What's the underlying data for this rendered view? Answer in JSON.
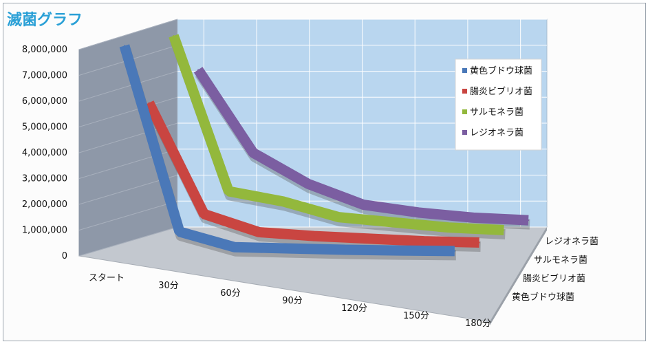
{
  "chart_data": {
    "type": "line",
    "title": "滅菌グラフ",
    "categories": [
      "スタート",
      "30分",
      "60分",
      "90分",
      "120分",
      "150分",
      "180分"
    ],
    "yticks": [
      "0",
      "1,000,000",
      "2,000,000",
      "3,000,000",
      "4,000,000",
      "5,000,000",
      "6,000,000",
      "7,000,000",
      "8,000,000"
    ],
    "ylim": [
      0,
      8000000
    ],
    "legend_position": "top-right",
    "series": [
      {
        "name": "黄色ブドウ球菌",
        "color": "#4a78b8",
        "values": [
          8000000,
          800000,
          200000,
          150000,
          100000,
          70000,
          50000
        ]
      },
      {
        "name": "腸炎ビブリオ菌",
        "color": "#c94541",
        "values": [
          5500000,
          1200000,
          500000,
          350000,
          250000,
          150000,
          100000
        ]
      },
      {
        "name": "サルモネラ菌",
        "color": "#93b83c",
        "values": [
          7800000,
          1800000,
          1400000,
          800000,
          600000,
          400000,
          300000
        ]
      },
      {
        "name": "レジオネラ菌",
        "color": "#7b5ea1",
        "values": [
          6200000,
          3000000,
          1800000,
          1000000,
          700000,
          500000,
          400000
        ]
      }
    ],
    "depth_labels": [
      "レジオネラ菌",
      "サルモネラ菌",
      "腸炎ビブリオ菌",
      "黄色ブドウ球菌"
    ],
    "grid": true
  }
}
